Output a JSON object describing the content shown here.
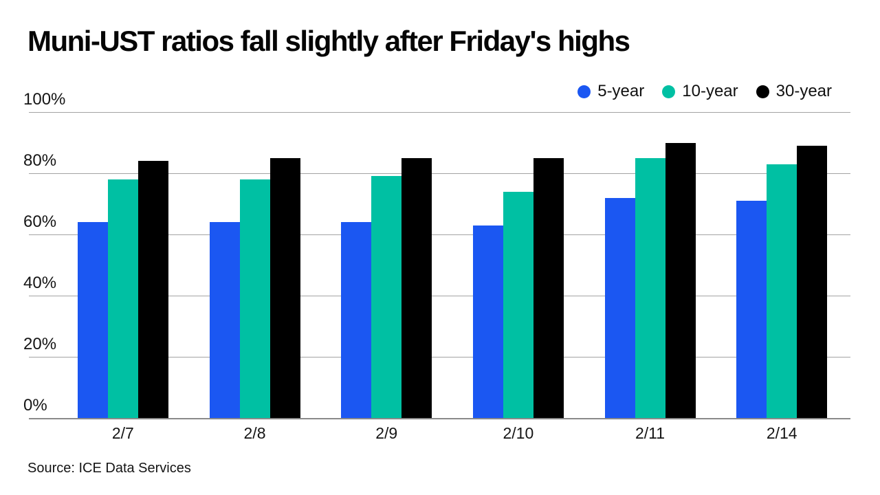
{
  "title": "Muni-UST ratios fall slightly after Friday's highs",
  "source": "Source: ICE Data Services",
  "legend": {
    "items": [
      {
        "label": "5-year",
        "color": "#1b57f2"
      },
      {
        "label": "10-year",
        "color": "#00c0a3"
      },
      {
        "label": "30-year",
        "color": "#000000"
      }
    ]
  },
  "chart_data": {
    "type": "bar",
    "title": "Muni-UST ratios fall slightly after Friday's highs",
    "categories": [
      "2/7",
      "2/8",
      "2/9",
      "2/10",
      "2/11",
      "2/14"
    ],
    "series": [
      {
        "name": "5-year",
        "color": "#1b57f2",
        "values": [
          64,
          64,
          64,
          63,
          72,
          71
        ]
      },
      {
        "name": "10-year",
        "color": "#00c0a3",
        "values": [
          78,
          78,
          79,
          74,
          85,
          83
        ]
      },
      {
        "name": "30-year",
        "color": "#000000",
        "values": [
          84,
          85,
          85,
          85,
          90,
          89
        ]
      }
    ],
    "xlabel": "",
    "ylabel": "",
    "ylim": [
      0,
      100
    ],
    "yticks": [
      "0%",
      "20%",
      "40%",
      "60%",
      "80%",
      "100%"
    ],
    "grid": true,
    "legend_position": "top-right",
    "source": "Source: ICE Data Services"
  }
}
